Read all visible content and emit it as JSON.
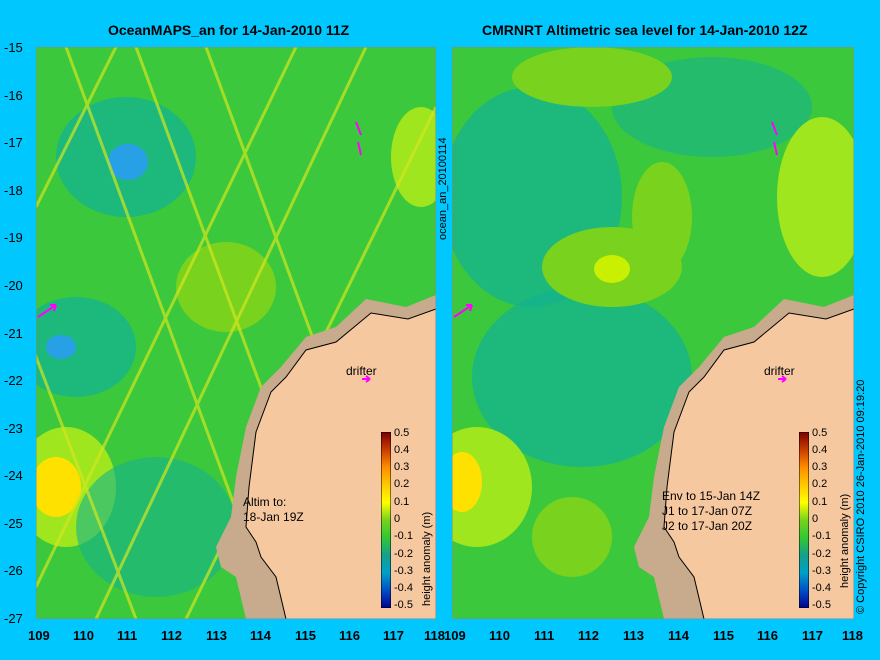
{
  "panels": [
    {
      "title": "OceanMAPS_an for 14-Jan-2010 11Z"
    },
    {
      "title": "CMRNRT Altimetric sea level  for 14-Jan-2010 12Z"
    }
  ],
  "y_axis": {
    "ticks": [
      "-15",
      "-16",
      "-17",
      "-18",
      "-19",
      "-20",
      "-21",
      "-22",
      "-23",
      "-24",
      "-25",
      "-26",
      "-27"
    ]
  },
  "x_axis": {
    "ticks": [
      "109",
      "110",
      "111",
      "112",
      "113",
      "114",
      "115",
      "116",
      "117",
      "118"
    ]
  },
  "vertical_labels": {
    "analysis_id": "ocean_an_20100114",
    "colorbar_label": "height anomaly (m)",
    "copyright": "© Copyright CSIRO 2010   26-Jan-2010 09:19:20"
  },
  "colorbar": {
    "ticks": [
      "0.5",
      "0.4",
      "0.3",
      "0.2",
      "0.1",
      "0",
      "-0.1",
      "-0.2",
      "-0.3",
      "-0.4",
      "-0.5"
    ],
    "colors": [
      "#7a0000",
      "#c83c00",
      "#ff8c00",
      "#ffc800",
      "#ffff00",
      "#b4e600",
      "#32c832",
      "#14a08c",
      "#00a0c8",
      "#0050c8",
      "#00008c"
    ]
  },
  "annotations": {
    "left_altim": "Altim to:\n18-Jan 19Z",
    "right_env": "Env to 15-Jan 14Z\nJ1 to 17-Jan 07Z\nJ2 to 17-Jan 20Z",
    "drifter_left": "drifter",
    "drifter_right": "drifter"
  },
  "colors": {
    "land": "#f5c8a0",
    "shelf": "#c8aa8c",
    "sea_base": "#3cc83c",
    "background": "#00c8ff",
    "drifter_arrow": "#ff00ff"
  }
}
